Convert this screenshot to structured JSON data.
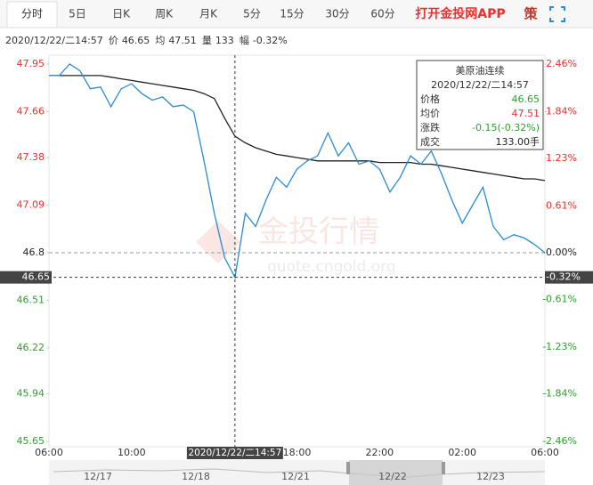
{
  "tabs": [
    "分时",
    "5日",
    "日K",
    "周K",
    "月K",
    "5分",
    "15分",
    "30分",
    "60分"
  ],
  "app_link": "打开金投网APP",
  "strategy": "策",
  "info": {
    "time": "2020/12/22/二14:57",
    "items": [
      {
        "label": "价",
        "value": "46.65"
      },
      {
        "label": "均",
        "value": "47.51"
      },
      {
        "label": "量",
        "value": "133"
      },
      {
        "label": "幅",
        "value": "-0.32%"
      }
    ]
  },
  "tooltip": {
    "title": "美原油连续",
    "time": "2020/12/22/二14:57",
    "rows": [
      {
        "label": "价格",
        "value": "46.65"
      },
      {
        "label": "均价",
        "value": "47.51"
      },
      {
        "label": "涨跌",
        "value": "-0.15(-0.32%)"
      },
      {
        "label": "成交",
        "value": "133.00手"
      }
    ]
  },
  "watermark": {
    "brand": "金投行情",
    "url": "quote.cngold.org"
  },
  "navigator": [
    "12/17",
    "12/18",
    "12/21",
    "12/22",
    "12/23"
  ],
  "chart_data": {
    "type": "line",
    "categories": [
      "06:00",
      null,
      null,
      null,
      null,
      null,
      null,
      null,
      "10:00",
      null,
      null,
      null,
      null,
      null,
      null,
      null,
      null,
      null,
      null,
      null,
      null,
      null,
      null,
      null,
      "18:00",
      null,
      null,
      null,
      null,
      null,
      null,
      null,
      "22:00",
      null,
      null,
      null,
      null,
      null,
      null,
      null,
      "02:00",
      null,
      null,
      null,
      null,
      null,
      null,
      null,
      "06:00"
    ],
    "series": [
      {
        "color": "#2a8bd0",
        "values": [
          47.88,
          47.88,
          47.95,
          47.91,
          47.8,
          47.81,
          47.69,
          47.8,
          47.83,
          47.77,
          47.73,
          47.75,
          47.69,
          47.7,
          47.66,
          47.36,
          47.04,
          46.77,
          46.65,
          47.04,
          46.96,
          47.12,
          47.26,
          47.2,
          47.31,
          47.36,
          47.39,
          47.53,
          47.39,
          47.47,
          47.34,
          47.36,
          47.31,
          47.17,
          47.26,
          47.39,
          47.34,
          47.42,
          47.28,
          47.12,
          46.98,
          47.09,
          47.2,
          46.96,
          46.88,
          46.91,
          46.89,
          46.85,
          46.8
        ]
      },
      {
        "color": "#222222",
        "values": [
          47.88,
          47.88,
          47.88,
          47.88,
          47.88,
          47.88,
          47.87,
          47.86,
          47.85,
          47.84,
          47.83,
          47.82,
          47.81,
          47.8,
          47.79,
          47.77,
          47.74,
          47.62,
          47.51,
          47.47,
          47.44,
          47.42,
          47.4,
          47.39,
          47.38,
          47.37,
          47.36,
          47.36,
          47.36,
          47.36,
          47.36,
          47.36,
          47.35,
          47.35,
          47.35,
          47.35,
          47.34,
          47.34,
          47.33,
          47.32,
          47.31,
          47.3,
          47.29,
          47.28,
          47.27,
          47.26,
          47.25,
          47.25,
          47.24
        ]
      }
    ],
    "ylim": [
      45.65,
      47.95
    ],
    "yticks": [
      47.95,
      47.66,
      47.38,
      47.09,
      46.8,
      46.51,
      46.22,
      45.94,
      45.65
    ],
    "y2lim": [
      -2.46,
      2.46
    ],
    "y2ticks": [
      {
        "value": 2.46,
        "label": "2.46%"
      },
      {
        "value": 1.84,
        "label": "1.84%"
      },
      {
        "value": 1.23,
        "label": "1.23%"
      },
      {
        "value": 0.61,
        "label": "0.61%"
      },
      {
        "value": 0,
        "label": "0.00%"
      },
      {
        "value": -0.61,
        "label": "-0.61%"
      },
      {
        "value": -1.23,
        "label": "-1.23%"
      },
      {
        "value": -1.84,
        "label": "-1.84%"
      },
      {
        "value": -2.46,
        "label": "-2.46%"
      }
    ],
    "reference_line": 46.8,
    "up_color": "#e8312f",
    "down_color": "#2ea02e",
    "crosshair": {
      "x": "2020/12/22/二14:57",
      "y": {
        "value": 46.65,
        "label": "46.65"
      },
      "y2": {
        "value": -0.32,
        "label": "-0.32%"
      }
    }
  }
}
